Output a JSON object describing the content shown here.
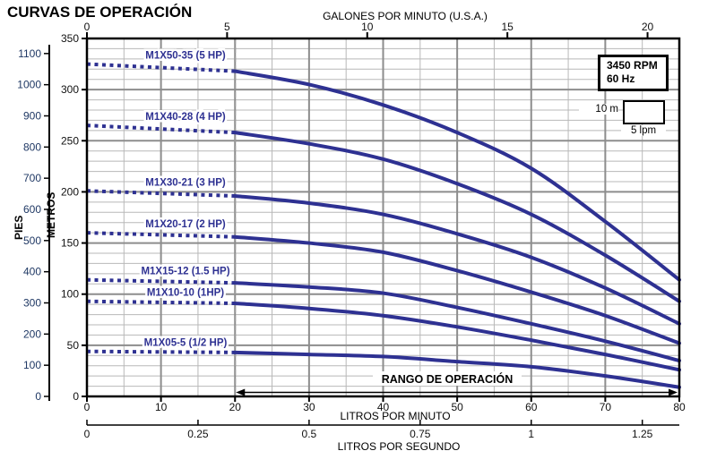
{
  "title": "CURVAS DE OPERACIÓN",
  "legend": {
    "rpm": "3450 RPM",
    "hz": "60 Hz"
  },
  "scale_box": {
    "vertical": "10 m",
    "horizontal": "5 lpm"
  },
  "colors": {
    "curve": "#2e3192",
    "grid_minor": "#b8b8b8",
    "grid_major": "#8d8d8d",
    "axis": "#000000",
    "dashed_guide": "#9a9a9a",
    "pies_ticks": "#1f3864",
    "text": "#111111"
  },
  "chart_data": {
    "type": "line",
    "title": "CURVAS DE OPERACIÓN",
    "x_bottom": {
      "label": "LITROS POR MINUTO",
      "range": [
        0,
        80
      ],
      "ticks": [
        0,
        10,
        20,
        30,
        40,
        50,
        60,
        70,
        80
      ]
    },
    "x_top": {
      "label": "GALONES POR MINUTO (U.S.A.)",
      "ticks": [
        0,
        5,
        10,
        15,
        20
      ],
      "lpm_per_unit": 3.78541
    },
    "x_seconds": {
      "label": "LITROS POR SEGUNDO",
      "ticks": [
        "0",
        "0.25",
        "0.5",
        "0.75",
        "1",
        "1.25"
      ],
      "lpm_per_unit": 60
    },
    "y_metros": {
      "label": "METROS",
      "range": [
        0,
        350
      ],
      "ticks": [
        0,
        50,
        100,
        150,
        200,
        250,
        300,
        350
      ]
    },
    "y_pies": {
      "label": "PIES",
      "ticks": [
        0,
        100,
        200,
        300,
        400,
        500,
        600,
        700,
        800,
        900,
        1000,
        1100
      ],
      "m_per_unit": 0.3048
    },
    "grid": {
      "minor_m": 10,
      "major_m": 50,
      "minor_lpm": 5,
      "major_lpm": 10
    },
    "guide_line_lpm": 20,
    "operating_range": {
      "label": "RANGO DE OPERACIÓN",
      "from_lpm": 20,
      "to_lpm": 80
    },
    "annotations": {
      "rpm": "3450 RPM",
      "hz": "60 Hz",
      "scale_v": "10 m",
      "scale_h": "5 lpm"
    },
    "series": [
      {
        "name": "M1X50-35 (5 HP)",
        "dotted": [
          [
            0,
            325
          ],
          [
            20,
            318
          ]
        ],
        "solid": [
          [
            20,
            318
          ],
          [
            30,
            305
          ],
          [
            40,
            285
          ],
          [
            50,
            258
          ],
          [
            60,
            223
          ],
          [
            70,
            171
          ],
          [
            80,
            114
          ]
        ]
      },
      {
        "name": "M1X40-28 (4 HP)",
        "dotted": [
          [
            0,
            265
          ],
          [
            20,
            258
          ]
        ],
        "solid": [
          [
            20,
            258
          ],
          [
            30,
            247
          ],
          [
            40,
            232
          ],
          [
            50,
            208
          ],
          [
            60,
            178
          ],
          [
            70,
            138
          ],
          [
            80,
            93
          ]
        ]
      },
      {
        "name": "M1X30-21 (3 HP)",
        "dotted": [
          [
            0,
            201
          ],
          [
            20,
            196
          ]
        ],
        "solid": [
          [
            20,
            196
          ],
          [
            30,
            189
          ],
          [
            40,
            178
          ],
          [
            50,
            159
          ],
          [
            60,
            136
          ],
          [
            70,
            106
          ],
          [
            80,
            71
          ]
        ]
      },
      {
        "name": "M1X20-17 (2 HP)",
        "dotted": [
          [
            0,
            160
          ],
          [
            20,
            156
          ]
        ],
        "solid": [
          [
            20,
            156
          ],
          [
            30,
            150
          ],
          [
            40,
            141
          ],
          [
            50,
            123
          ],
          [
            60,
            102
          ],
          [
            70,
            79
          ],
          [
            80,
            52
          ]
        ]
      },
      {
        "name": "M1X15-12 (1.5 HP)",
        "dotted": [
          [
            0,
            114
          ],
          [
            20,
            111
          ]
        ],
        "solid": [
          [
            20,
            111
          ],
          [
            30,
            107
          ],
          [
            40,
            101
          ],
          [
            50,
            87
          ],
          [
            60,
            71
          ],
          [
            70,
            54
          ],
          [
            80,
            35
          ]
        ]
      },
      {
        "name": "M1X10-10 (1HP)",
        "dotted": [
          [
            0,
            93
          ],
          [
            20,
            91
          ]
        ],
        "solid": [
          [
            20,
            91
          ],
          [
            30,
            86
          ],
          [
            40,
            79
          ],
          [
            50,
            68
          ],
          [
            60,
            55
          ],
          [
            70,
            41
          ],
          [
            80,
            26
          ]
        ]
      },
      {
        "name": "M1X05-5 (1/2 HP)",
        "dotted": [
          [
            0,
            44
          ],
          [
            20,
            43
          ]
        ],
        "solid": [
          [
            20,
            43
          ],
          [
            30,
            41
          ],
          [
            40,
            39
          ],
          [
            50,
            34
          ],
          [
            60,
            29
          ],
          [
            70,
            20
          ],
          [
            80,
            9
          ]
        ]
      }
    ]
  }
}
